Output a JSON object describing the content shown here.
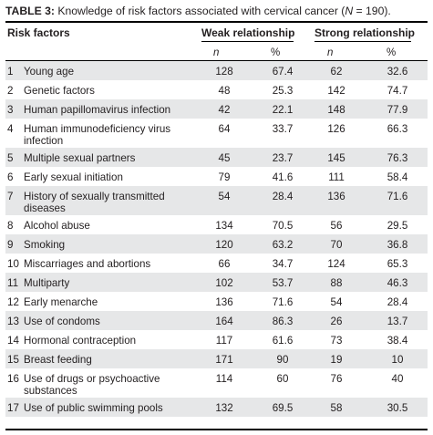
{
  "caption": {
    "label": "TABLE 3:",
    "text": " Knowledge of risk factors associated with cervical cancer (",
    "n_symbol": "N",
    "n_value": " = 190)."
  },
  "header": {
    "risk_factors": "Risk factors",
    "weak": "Weak relationship",
    "strong": "Strong relationship",
    "n": "n",
    "pct": "%"
  },
  "rows": [
    {
      "idx": "1",
      "name": "Young age",
      "wn": "128",
      "wp": "67.4",
      "sn": "62",
      "sp": "32.6"
    },
    {
      "idx": "2",
      "name": "Genetic factors",
      "wn": "48",
      "wp": "25.3",
      "sn": "142",
      "sp": "74.7"
    },
    {
      "idx": "3",
      "name": "Human papillomavirus infection",
      "wn": "42",
      "wp": "22.1",
      "sn": "148",
      "sp": "77.9"
    },
    {
      "idx": "4",
      "name": "Human immunodeficiency virus infection",
      "wn": "64",
      "wp": "33.7",
      "sn": "126",
      "sp": "66.3"
    },
    {
      "idx": "5",
      "name": "Multiple sexual partners",
      "wn": "45",
      "wp": "23.7",
      "sn": "145",
      "sp": "76.3"
    },
    {
      "idx": "6",
      "name": "Early sexual initiation",
      "wn": "79",
      "wp": "41.6",
      "sn": "111",
      "sp": "58.4"
    },
    {
      "idx": "7",
      "name": "History of sexually transmitted diseases",
      "wn": "54",
      "wp": "28.4",
      "sn": "136",
      "sp": "71.6"
    },
    {
      "idx": "8",
      "name": "Alcohol abuse",
      "wn": "134",
      "wp": "70.5",
      "sn": "56",
      "sp": "29.5"
    },
    {
      "idx": "9",
      "name": "Smoking",
      "wn": "120",
      "wp": "63.2",
      "sn": "70",
      "sp": "36.8"
    },
    {
      "idx": "10",
      "name": "Miscarriages and abortions",
      "wn": "66",
      "wp": "34.7",
      "sn": "124",
      "sp": "65.3"
    },
    {
      "idx": "11",
      "name": "Multiparty",
      "wn": "102",
      "wp": "53.7",
      "sn": "88",
      "sp": "46.3"
    },
    {
      "idx": "12",
      "name": "Early menarche",
      "wn": "136",
      "wp": "71.6",
      "sn": "54",
      "sp": "28.4"
    },
    {
      "idx": "13",
      "name": "Use of condoms",
      "wn": "164",
      "wp": "86.3",
      "sn": "26",
      "sp": "13.7"
    },
    {
      "idx": "14",
      "name": "Hormonal contraception",
      "wn": "117",
      "wp": "61.6",
      "sn": "73",
      "sp": "38.4"
    },
    {
      "idx": "15",
      "name": "Breast feeding",
      "wn": "171",
      "wp": "90",
      "sn": "19",
      "sp": "10"
    },
    {
      "idx": "16",
      "name": "Use of drugs or psychoactive substances",
      "wn": "114",
      "wp": "60",
      "sn": "76",
      "sp": "40"
    },
    {
      "idx": "17",
      "name": "Use of public swimming pools",
      "wn": "132",
      "wp": "69.5",
      "sn": "58",
      "sp": "30.5"
    }
  ]
}
